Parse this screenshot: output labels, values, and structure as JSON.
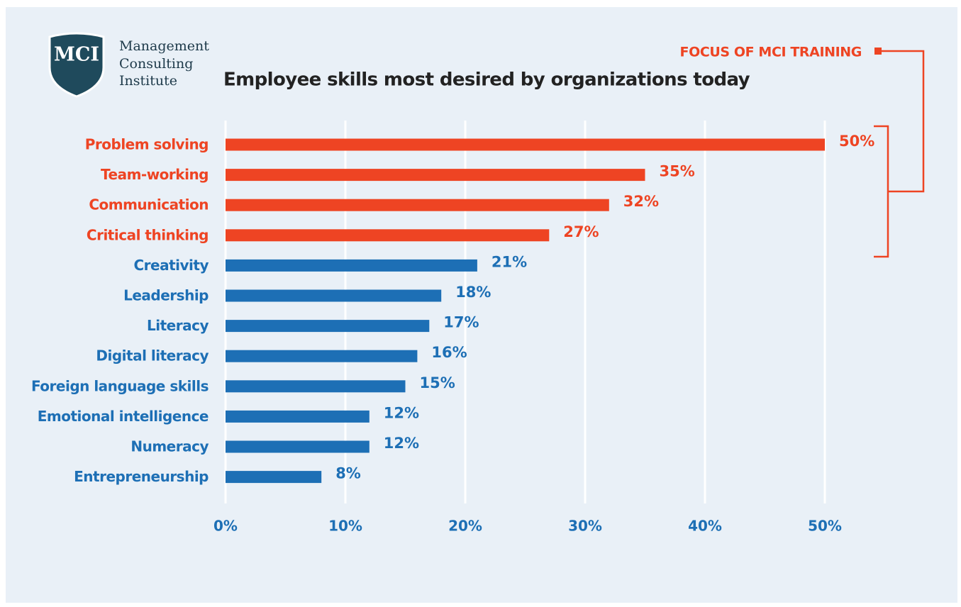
{
  "chart_data": {
    "type": "bar",
    "orientation": "horizontal",
    "title": "Employee skills most desired by organizations today",
    "logo": {
      "mark": "MCI",
      "lines": [
        "Management",
        "Consulting",
        "Institute"
      ]
    },
    "annotation": "FOCUS OF MCI TRAINING",
    "categories": [
      "Problem solving",
      "Team-working",
      "Communication",
      "Critical thinking",
      "Creativity",
      "Leadership",
      "Literacy",
      "Digital literacy",
      "Foreign language skills",
      "Emotional intelligence",
      "Numeracy",
      "Entrepreneurship"
    ],
    "values": [
      50,
      35,
      32,
      27,
      21,
      18,
      17,
      16,
      15,
      12,
      12,
      8
    ],
    "value_labels": [
      "50%",
      "35%",
      "32%",
      "27%",
      "21%",
      "18%",
      "17%",
      "16%",
      "15%",
      "12%",
      "12%",
      "8%"
    ],
    "colors": [
      "#ee4423",
      "#ee4423",
      "#ee4423",
      "#ee4423",
      "#1d6fb5",
      "#1d6fb5",
      "#1d6fb5",
      "#1d6fb5",
      "#1d6fb5",
      "#1d6fb5",
      "#1d6fb5",
      "#1d6fb5"
    ],
    "xlim": [
      0,
      50
    ],
    "xticks": [
      {
        "value": 0,
        "label": "0%"
      },
      {
        "value": 10,
        "label": "10%"
      },
      {
        "value": 20,
        "label": "20%"
      },
      {
        "value": 30,
        "label": "30%"
      },
      {
        "value": 40,
        "label": "40%"
      },
      {
        "value": 50,
        "label": "50%"
      }
    ],
    "grid": true
  }
}
